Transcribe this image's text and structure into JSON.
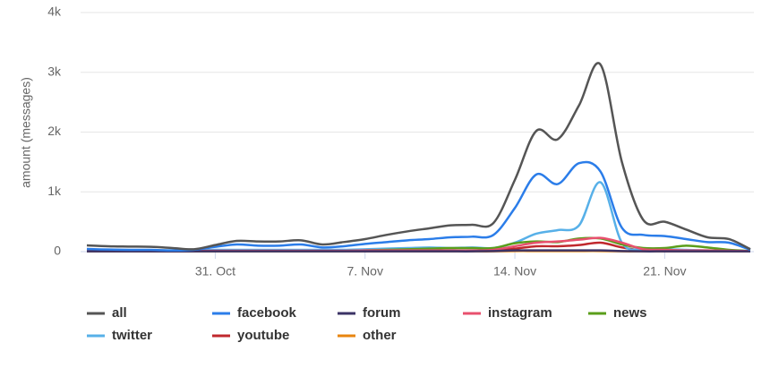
{
  "chart_data": {
    "type": "line",
    "ylabel": "amount (messages)",
    "categories": [
      null,
      null,
      null,
      null,
      null,
      null,
      "31. Oct",
      null,
      null,
      null,
      null,
      null,
      null,
      "7. Nov",
      null,
      null,
      null,
      null,
      null,
      null,
      "14. Nov",
      null,
      null,
      null,
      null,
      null,
      null,
      "21. Nov",
      null,
      null,
      null,
      null
    ],
    "ylim": [
      0,
      4000
    ],
    "yticks": [
      {
        "value": 0,
        "label": "0"
      },
      {
        "value": 1000,
        "label": "1k"
      },
      {
        "value": 2000,
        "label": "2k"
      },
      {
        "value": 3000,
        "label": "3k"
      },
      {
        "value": 4000,
        "label": "4k"
      }
    ],
    "grid": true,
    "legend": "bottom",
    "series": [
      {
        "name": "all",
        "color": "#555555",
        "values": [
          105,
          90,
          85,
          80,
          60,
          40,
          110,
          180,
          170,
          170,
          190,
          120,
          160,
          210,
          280,
          340,
          390,
          440,
          450,
          480,
          1200,
          2020,
          1880,
          2450,
          3130,
          1500,
          530,
          500,
          370,
          240,
          210,
          40
        ]
      },
      {
        "name": "facebook",
        "color": "#2b7de9",
        "values": [
          45,
          35,
          30,
          30,
          20,
          30,
          80,
          120,
          100,
          100,
          120,
          70,
          90,
          130,
          160,
          190,
          210,
          240,
          250,
          280,
          730,
          1290,
          1130,
          1480,
          1340,
          400,
          280,
          260,
          210,
          160,
          150,
          30
        ]
      },
      {
        "name": "forum",
        "color": "#3b3366",
        "values": [
          5,
          5,
          5,
          5,
          5,
          5,
          5,
          5,
          5,
          5,
          5,
          5,
          5,
          5,
          5,
          5,
          5,
          5,
          5,
          10,
          20,
          20,
          20,
          20,
          20,
          10,
          5,
          5,
          5,
          5,
          5,
          5
        ]
      },
      {
        "name": "instagram",
        "color": "#e8506e",
        "values": [
          10,
          10,
          10,
          10,
          10,
          10,
          15,
          15,
          15,
          15,
          15,
          15,
          15,
          20,
          20,
          20,
          20,
          20,
          20,
          30,
          90,
          150,
          170,
          200,
          230,
          150,
          40,
          30,
          20,
          20,
          15,
          10
        ]
      },
      {
        "name": "news",
        "color": "#5a9e1a",
        "values": [
          10,
          10,
          10,
          10,
          10,
          10,
          10,
          10,
          10,
          10,
          10,
          10,
          10,
          20,
          30,
          40,
          50,
          60,
          60,
          60,
          140,
          170,
          160,
          220,
          220,
          120,
          60,
          60,
          100,
          70,
          30,
          10
        ]
      },
      {
        "name": "twitter",
        "color": "#57b0e8",
        "values": [
          20,
          20,
          20,
          20,
          20,
          20,
          30,
          30,
          30,
          30,
          30,
          30,
          30,
          40,
          50,
          60,
          70,
          60,
          70,
          60,
          150,
          300,
          360,
          440,
          1160,
          150,
          40,
          40,
          30,
          20,
          20,
          10
        ]
      },
      {
        "name": "youtube",
        "color": "#c0282d",
        "values": [
          10,
          10,
          10,
          10,
          10,
          10,
          10,
          10,
          10,
          10,
          10,
          10,
          10,
          10,
          10,
          10,
          10,
          10,
          10,
          20,
          50,
          90,
          90,
          110,
          150,
          70,
          20,
          10,
          10,
          10,
          10,
          10
        ]
      },
      {
        "name": "other",
        "color": "#e8850f",
        "values": [
          5,
          5,
          5,
          5,
          5,
          5,
          5,
          5,
          5,
          5,
          5,
          5,
          5,
          5,
          5,
          5,
          5,
          5,
          5,
          5,
          10,
          10,
          10,
          10,
          10,
          5,
          5,
          5,
          5,
          5,
          5,
          5
        ]
      }
    ]
  }
}
